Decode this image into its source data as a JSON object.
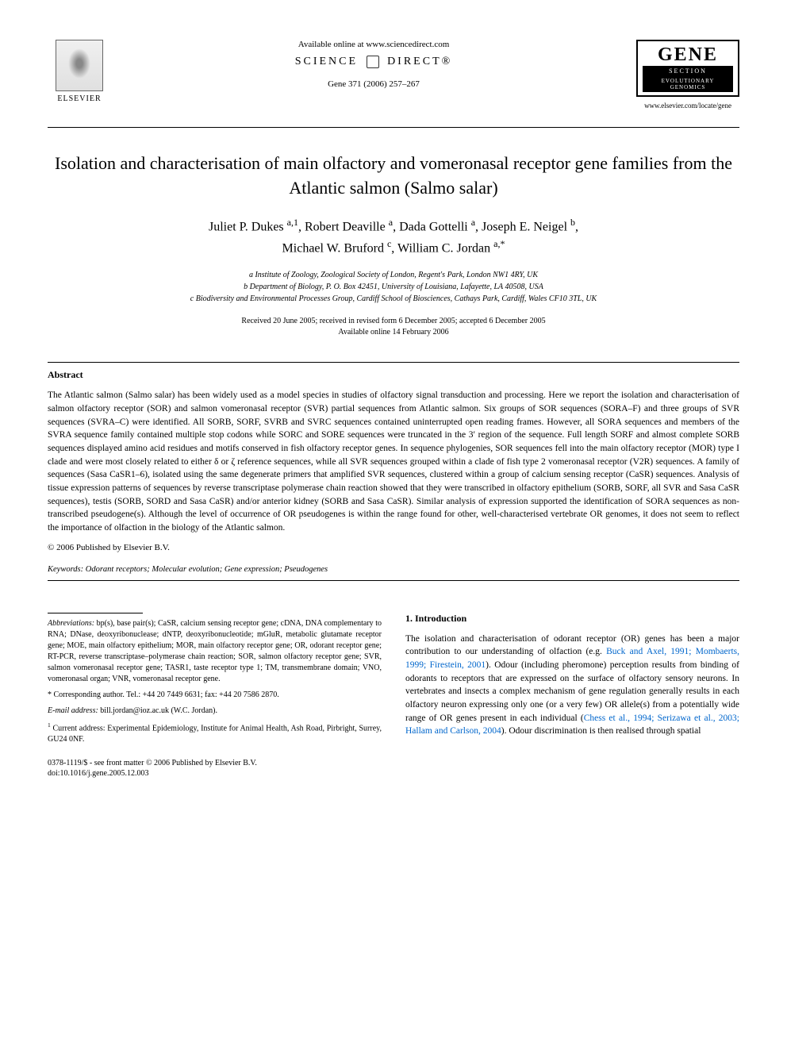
{
  "header": {
    "elsevier_label": "ELSEVIER",
    "available_online": "Available online at www.sciencedirect.com",
    "sciencedirect_left": "SCIENCE",
    "sciencedirect_right": "DIRECT®",
    "citation": "Gene 371 (2006) 257–267",
    "gene_title": "GENE",
    "gene_section": "SECTION",
    "gene_subtitle": "EVOLUTIONARY GENOMICS",
    "gene_url": "www.elsevier.com/locate/gene"
  },
  "title": "Isolation and characterisation of main olfactory and vomeronasal receptor gene families from the Atlantic salmon (Salmo salar)",
  "authors_line1": "Juliet P. Dukes a,1, Robert Deaville a, Dada Gottelli a, Joseph E. Neigel b,",
  "authors_line2": "Michael W. Bruford c, William C. Jordan a,*",
  "affiliations": {
    "a": "a Institute of Zoology, Zoological Society of London, Regent's Park, London NW1 4RY, UK",
    "b": "b Department of Biology, P. O. Box 42451, University of Louisiana, Lafayette, LA 40508, USA",
    "c": "c Biodiversity and Environmental Processes Group, Cardiff School of Biosciences, Cathays Park, Cardiff, Wales CF10 3TL, UK"
  },
  "dates": {
    "received": "Received 20 June 2005; received in revised form 6 December 2005; accepted 6 December 2005",
    "online": "Available online 14 February 2006"
  },
  "abstract_heading": "Abstract",
  "abstract": "The Atlantic salmon (Salmo salar) has been widely used as a model species in studies of olfactory signal transduction and processing. Here we report the isolation and characterisation of salmon olfactory receptor (SOR) and salmon vomeronasal receptor (SVR) partial sequences from Atlantic salmon. Six groups of SOR sequences (SORA–F) and three groups of SVR sequences (SVRA–C) were identified. All SORB, SORF, SVRB and SVRC sequences contained uninterrupted open reading frames. However, all SORA sequences and members of the SVRA sequence family contained multiple stop codons while SORC and SORE sequences were truncated in the 3′ region of the sequence. Full length SORF and almost complete SORB sequences displayed amino acid residues and motifs conserved in fish olfactory receptor genes. In sequence phylogenies, SOR sequences fell into the main olfactory receptor (MOR) type I clade and were most closely related to either δ or ζ reference sequences, while all SVR sequences grouped within a clade of fish type 2 vomeronasal receptor (V2R) sequences. A family of sequences (Sasa CaSR1–6), isolated using the same degenerate primers that amplified SVR sequences, clustered within a group of calcium sensing receptor (CaSR) sequences. Analysis of tissue expression patterns of sequences by reverse transcriptase polymerase chain reaction showed that they were transcribed in olfactory epithelium (SORB, SORF, all SVR and Sasa CaSR sequences), testis (SORB, SORD and Sasa CaSR) and/or anterior kidney (SORB and Sasa CaSR). Similar analysis of expression supported the identification of SORA sequences as non-transcribed pseudogene(s). Although the level of occurrence of OR pseudogenes is within the range found for other, well-characterised vertebrate OR genomes, it does not seem to reflect the importance of olfaction in the biology of the Atlantic salmon.",
  "copyright": "© 2006 Published by Elsevier B.V.",
  "keywords_label": "Keywords:",
  "keywords": "Odorant receptors; Molecular evolution; Gene expression; Pseudogenes",
  "intro_heading": "1. Introduction",
  "intro_p1a": "The isolation and characterisation of odorant receptor (OR) genes has been a major contribution to our understanding of olfaction (e.g. ",
  "intro_p1_link1": "Buck and Axel, 1991; Mombaerts, 1999; Firestein, 2001",
  "intro_p1b": "). Odour (including pheromone) perception results from binding of odorants to receptors that are expressed on the surface of olfactory sensory neurons. In vertebrates and insects a complex mechanism of gene regulation generally results in each olfactory neuron expressing only one (or a very few) OR allele(s) from a potentially wide range of OR genes present in each individual (",
  "intro_p1_link2": "Chess et al., 1994; Serizawa et al., 2003; Hallam and Carlson, 2004",
  "intro_p1c": "). Odour discrimination is then realised through spatial",
  "footnotes": {
    "abbrev_label": "Abbreviations:",
    "abbrev": "bp(s), base pair(s); CaSR, calcium sensing receptor gene; cDNA, DNA complementary to RNA; DNase, deoxyribonuclease; dNTP, deoxyribonucleotide; mGluR, metabolic glutamate receptor gene; MOE, main olfactory epithelium; MOR, main olfactory receptor gene; OR, odorant receptor gene; RT-PCR, reverse transcriptase–polymerase chain reaction; SOR, salmon olfactory receptor gene; SVR, salmon vomeronasal receptor gene; TASR1, taste receptor type 1; TM, transmembrane domain; VNO, vomeronasal organ; VNR, vomeronasal receptor gene.",
    "corr_label": "* Corresponding author.",
    "corr": "Tel.: +44 20 7449 6631; fax: +44 20 7586 2870.",
    "email_label": "E-mail address:",
    "email": "bill.jordan@ioz.ac.uk (W.C. Jordan).",
    "note1_label": "1",
    "note1": "Current address: Experimental Epidemiology, Institute for Animal Health, Ash Road, Pirbright, Surrey, GU24 0NF."
  },
  "bottom": {
    "issn": "0378-1119/$ - see front matter © 2006 Published by Elsevier B.V.",
    "doi": "doi:10.1016/j.gene.2005.12.003"
  },
  "colors": {
    "text": "#000000",
    "link": "#0066cc",
    "background": "#ffffff"
  }
}
